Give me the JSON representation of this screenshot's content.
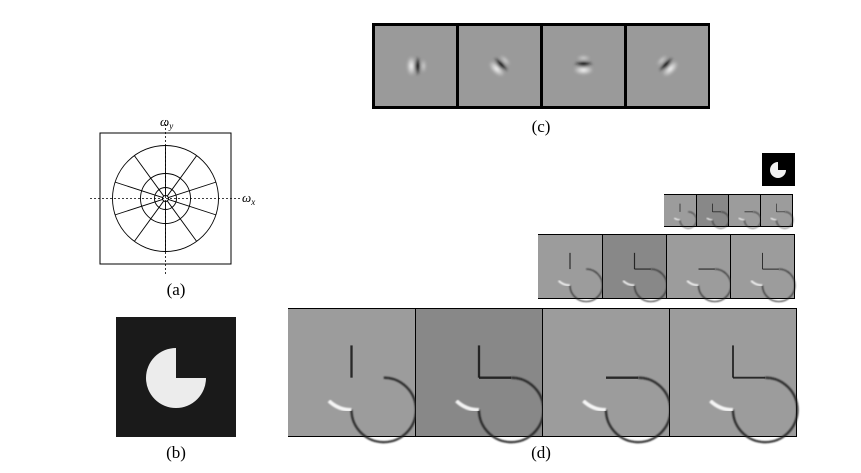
{
  "panels": {
    "a": {
      "caption": "(a)",
      "x_axis_label": "ω",
      "x_axis_sub": "x",
      "y_axis_label": "ω",
      "y_axis_sub": "y",
      "angular_divisions": 10,
      "radial_rings": 4
    },
    "b": {
      "caption": "(b)",
      "shape": "pac-man disk with missing lower-right quadrant"
    },
    "c": {
      "caption": "(c)",
      "filter_orientations_deg": [
        0,
        45,
        90,
        135
      ]
    },
    "d": {
      "caption": "(d)",
      "pyramid_levels": 4,
      "orientations_per_level": 4
    }
  },
  "colors": {
    "background": "#ffffff",
    "filter_gray": "#9a9a9a",
    "dark": "#1a1a1a",
    "shape_fill": "#ececec"
  }
}
